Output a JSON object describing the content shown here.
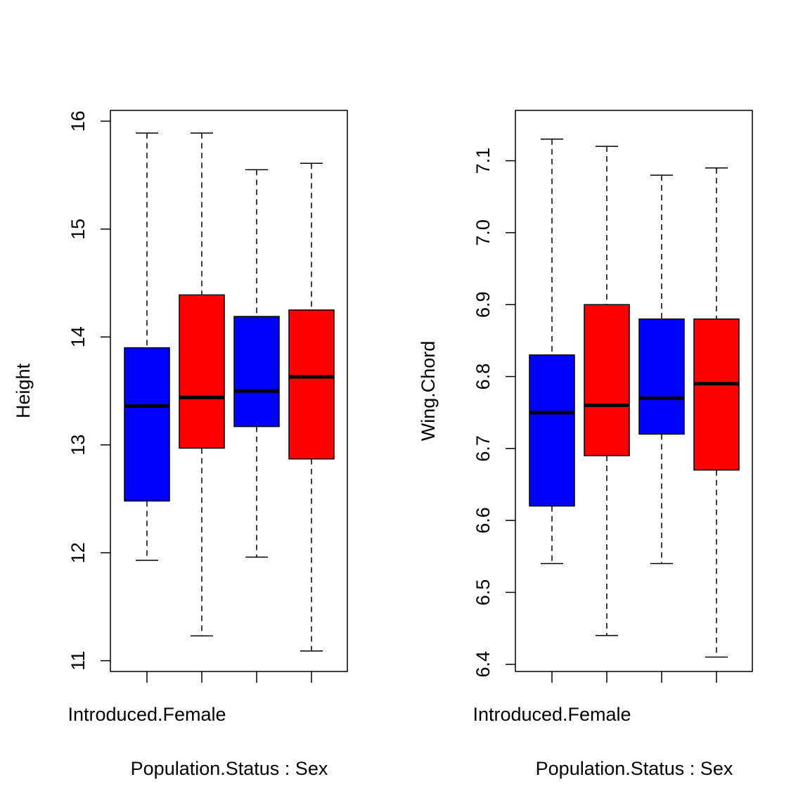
{
  "chart_data": [
    {
      "type": "box",
      "xlabel": "Population.Status : Sex",
      "ylabel": "Height",
      "ylim": [
        10.9,
        16.1
      ],
      "yticks": [
        11,
        12,
        13,
        14,
        15,
        16
      ],
      "ytick_labels": [
        "11",
        "12",
        "13",
        "14",
        "15",
        "16"
      ],
      "grid": false,
      "category_labels_shown": [
        "Introduced.Female",
        "",
        "",
        ""
      ],
      "boxes": [
        {
          "color": "#0000ff",
          "whisker_low": 11.93,
          "q1": 12.48,
          "median": 13.36,
          "q3": 13.9,
          "whisker_high": 15.89
        },
        {
          "color": "#ff0000",
          "whisker_low": 11.23,
          "q1": 12.97,
          "median": 13.44,
          "q3": 14.39,
          "whisker_high": 15.89
        },
        {
          "color": "#0000ff",
          "whisker_low": 11.96,
          "q1": 13.17,
          "median": 13.5,
          "q3": 14.19,
          "whisker_high": 15.55
        },
        {
          "color": "#ff0000",
          "whisker_low": 11.09,
          "q1": 12.87,
          "median": 13.63,
          "q3": 14.25,
          "whisker_high": 15.61
        }
      ]
    },
    {
      "type": "box",
      "xlabel": "Population.Status : Sex",
      "ylabel": "Wing.Chord",
      "ylim": [
        6.39,
        7.17
      ],
      "yticks": [
        6.4,
        6.5,
        6.6,
        6.7,
        6.8,
        6.9,
        7.0,
        7.1
      ],
      "ytick_labels": [
        "6.4",
        "6.5",
        "6.6",
        "6.7",
        "6.8",
        "6.9",
        "7.0",
        "7.1"
      ],
      "grid": false,
      "category_labels_shown": [
        "Introduced.Female",
        "",
        "",
        ""
      ],
      "boxes": [
        {
          "color": "#0000ff",
          "whisker_low": 6.54,
          "q1": 6.62,
          "median": 6.75,
          "q3": 6.83,
          "whisker_high": 7.13
        },
        {
          "color": "#ff0000",
          "whisker_low": 6.44,
          "q1": 6.69,
          "median": 6.76,
          "q3": 6.9,
          "whisker_high": 7.12
        },
        {
          "color": "#0000ff",
          "whisker_low": 6.54,
          "q1": 6.72,
          "median": 6.77,
          "q3": 6.88,
          "whisker_high": 7.08
        },
        {
          "color": "#ff0000",
          "whisker_low": 6.41,
          "q1": 6.67,
          "median": 6.79,
          "q3": 6.88,
          "whisker_high": 7.09
        }
      ]
    }
  ]
}
